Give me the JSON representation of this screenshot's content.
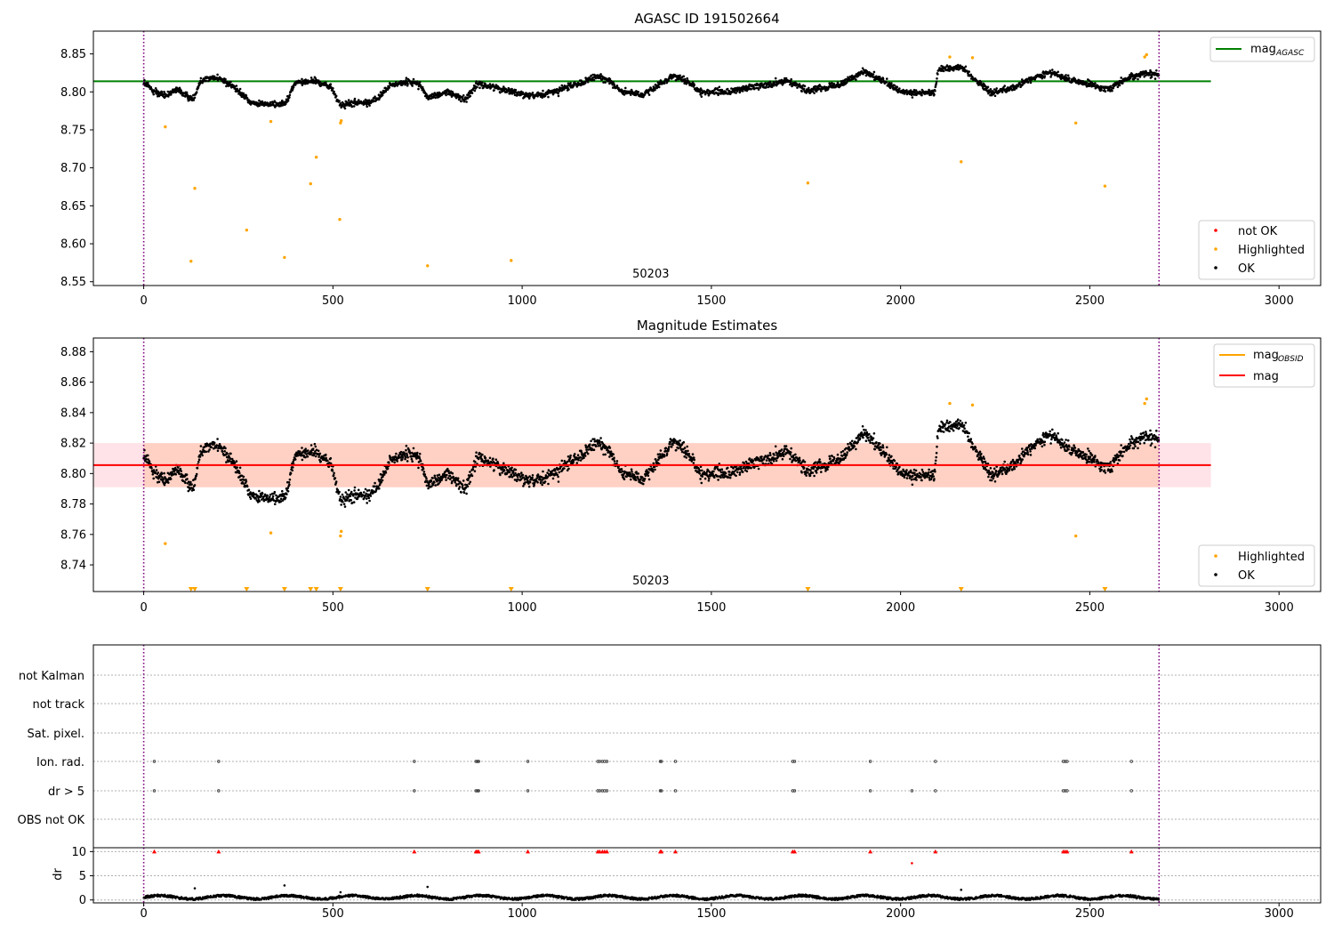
{
  "figure": {
    "title": "AGASC ID 191502664",
    "subtitle": "Magnitude Estimates"
  },
  "colors": {
    "ok": "#000000",
    "not_ok": "#ff0000",
    "highlighted": "#ffa500",
    "mag_agasc": "#008000",
    "mag_obsid": "#ffa500",
    "mag_mean": "#ff0000",
    "band_fill": "#ffc0cb",
    "band_fill_inner": "#ffdab9",
    "obs_boundary": "#800080",
    "grid": "#b0b0b0"
  },
  "chart_data": [
    {
      "type": "scatter",
      "title": "AGASC ID 191502664",
      "xlim": [
        -133,
        3110
      ],
      "ylim": [
        8.545,
        8.88
      ],
      "xticks": [
        0,
        500,
        1000,
        1500,
        2000,
        2500,
        3000
      ],
      "yticks": [
        8.55,
        8.6,
        8.65,
        8.7,
        8.75,
        8.8,
        8.85
      ],
      "ytick_labels": [
        "8.55",
        "8.60",
        "8.65",
        "8.70",
        "8.75",
        "8.80",
        "8.85"
      ],
      "obsid_boundaries": [
        0,
        2683
      ],
      "obsid_label": "50203",
      "legend_upper": {
        "placement": "top-right",
        "entries": [
          {
            "label": "mag",
            "sub": "AGASC"
          }
        ]
      },
      "legend_lower": {
        "placement": "bottom-right",
        "entries": [
          "not OK",
          "Highlighted",
          "OK"
        ]
      },
      "mag_agasc": {
        "value": 8.814,
        "x_range": [
          -133,
          2820
        ]
      },
      "ok_series": {
        "name": "OK",
        "n_points": 2683,
        "segments": [
          [
            0,
            8.812
          ],
          [
            30,
            8.8
          ],
          [
            60,
            8.795
          ],
          [
            90,
            8.803
          ],
          [
            110,
            8.796
          ],
          [
            130,
            8.79
          ],
          [
            150,
            8.815
          ],
          [
            190,
            8.82
          ],
          [
            250,
            8.803
          ],
          [
            280,
            8.786
          ],
          [
            340,
            8.783
          ],
          [
            375,
            8.786
          ],
          [
            400,
            8.812
          ],
          [
            450,
            8.815
          ],
          [
            495,
            8.806
          ],
          [
            520,
            8.782
          ],
          [
            560,
            8.786
          ],
          [
            590,
            8.785
          ],
          [
            620,
            8.792
          ],
          [
            650,
            8.808
          ],
          [
            700,
            8.814
          ],
          [
            730,
            8.81
          ],
          [
            750,
            8.792
          ],
          [
            800,
            8.8
          ],
          [
            850,
            8.79
          ],
          [
            880,
            8.81
          ],
          [
            930,
            8.806
          ],
          [
            1000,
            8.797
          ],
          [
            1050,
            8.795
          ],
          [
            1100,
            8.803
          ],
          [
            1150,
            8.811
          ],
          [
            1200,
            8.82
          ],
          [
            1230,
            8.816
          ],
          [
            1260,
            8.8
          ],
          [
            1320,
            8.797
          ],
          [
            1360,
            8.808
          ],
          [
            1400,
            8.822
          ],
          [
            1430,
            8.815
          ],
          [
            1470,
            8.8
          ],
          [
            1550,
            8.8
          ],
          [
            1600,
            8.806
          ],
          [
            1650,
            8.81
          ],
          [
            1700,
            8.815
          ],
          [
            1750,
            8.802
          ],
          [
            1800,
            8.806
          ],
          [
            1850,
            8.812
          ],
          [
            1900,
            8.827
          ],
          [
            1950,
            8.815
          ],
          [
            2000,
            8.8
          ],
          [
            2050,
            8.798
          ],
          [
            2090,
            8.8
          ],
          [
            2100,
            8.83
          ],
          [
            2160,
            8.833
          ],
          [
            2200,
            8.815
          ],
          [
            2240,
            8.799
          ],
          [
            2300,
            8.806
          ],
          [
            2350,
            8.818
          ],
          [
            2400,
            8.826
          ],
          [
            2450,
            8.815
          ],
          [
            2500,
            8.81
          ],
          [
            2550,
            8.804
          ],
          [
            2600,
            8.818
          ],
          [
            2650,
            8.825
          ],
          [
            2683,
            8.822
          ]
        ],
        "scatter_sd": 0.0045
      },
      "highlighted_points": [
        [
          57,
          8.754
        ],
        [
          125,
          8.577
        ],
        [
          135,
          8.673
        ],
        [
          272,
          8.618
        ],
        [
          336,
          8.761
        ],
        [
          372,
          8.582
        ],
        [
          441,
          8.679
        ],
        [
          456,
          8.714
        ],
        [
          518,
          8.632
        ],
        [
          520,
          8.759
        ],
        [
          522,
          8.762
        ],
        [
          750,
          8.571
        ],
        [
          971,
          8.578
        ],
        [
          1755,
          8.68
        ],
        [
          2160,
          8.708
        ],
        [
          2463,
          8.759
        ],
        [
          2540,
          8.676
        ],
        [
          2130,
          8.846
        ],
        [
          2190,
          8.845
        ],
        [
          2645,
          8.846
        ],
        [
          2650,
          8.849
        ]
      ]
    },
    {
      "type": "scatter",
      "title": "Magnitude Estimates",
      "xlim": [
        -133,
        3110
      ],
      "ylim": [
        8.7225,
        8.889
      ],
      "xticks": [
        0,
        500,
        1000,
        1500,
        2000,
        2500,
        3000
      ],
      "yticks": [
        8.74,
        8.76,
        8.78,
        8.8,
        8.82,
        8.84,
        8.86,
        8.88
      ],
      "ytick_labels": [
        "8.74",
        "8.76",
        "8.78",
        "8.80",
        "8.82",
        "8.84",
        "8.86",
        "8.88"
      ],
      "obsid_boundaries": [
        0,
        2683
      ],
      "obsid_label": "50203",
      "legend_upper": {
        "placement": "top-right",
        "entries": [
          {
            "label": "mag",
            "sub": "OBSID"
          },
          {
            "label": "mag",
            "sub": ""
          }
        ]
      },
      "legend_lower": {
        "placement": "bottom-right",
        "entries": [
          "Highlighted",
          "OK"
        ]
      },
      "mag_mean": 8.8055,
      "band": [
        8.791,
        8.82
      ],
      "band_x_range": [
        -133,
        2820
      ],
      "mag_obsid_x_range": [
        0,
        2683
      ],
      "out_of_range_markers_x": [
        125,
        135,
        272,
        372,
        441,
        456,
        520,
        750,
        971,
        1755,
        2160,
        2540
      ]
    },
    {
      "type": "scatter",
      "title": "",
      "xlim": [
        -133,
        3110
      ],
      "flag_rows": [
        "not Kalman",
        "not track",
        "Sat. pixel.",
        "Ion. rad.",
        "dr > 5",
        "OBS not OK"
      ],
      "flag_points": {
        "Ion. rad.": [
          28,
          198,
          715,
          878,
          882,
          885,
          1015,
          1200,
          1205,
          1212,
          1218,
          1224,
          1365,
          1368,
          1405,
          1715,
          1720,
          1920,
          2092,
          2430,
          2435,
          2440,
          2610
        ],
        "dr > 5": [
          28,
          198,
          715,
          878,
          882,
          885,
          1015,
          1200,
          1205,
          1212,
          1218,
          1224,
          1365,
          1368,
          1405,
          1715,
          1720,
          1920,
          2030,
          2092,
          2430,
          2435,
          2440,
          2610
        ]
      },
      "dr_panel": {
        "ylabel": "dr",
        "ylim": [
          -0.6,
          10.8
        ],
        "yticks": [
          0,
          5,
          10
        ],
        "clipped_markers_x": [
          28,
          198,
          715,
          878,
          882,
          885,
          1015,
          1200,
          1205,
          1212,
          1218,
          1224,
          1365,
          1368,
          1405,
          1715,
          1720,
          1920,
          2092,
          2430,
          2435,
          2440,
          2610
        ],
        "clipped_value": 10,
        "outliers": [
          [
            2030,
            7.6
          ],
          [
            372,
            3.0
          ],
          [
            135,
            2.4
          ],
          [
            750,
            2.7
          ],
          [
            2160,
            2.1
          ],
          [
            520,
            1.6
          ]
        ],
        "baseline": 0.55
      },
      "obsid_boundaries": [
        0,
        2683
      ]
    }
  ]
}
